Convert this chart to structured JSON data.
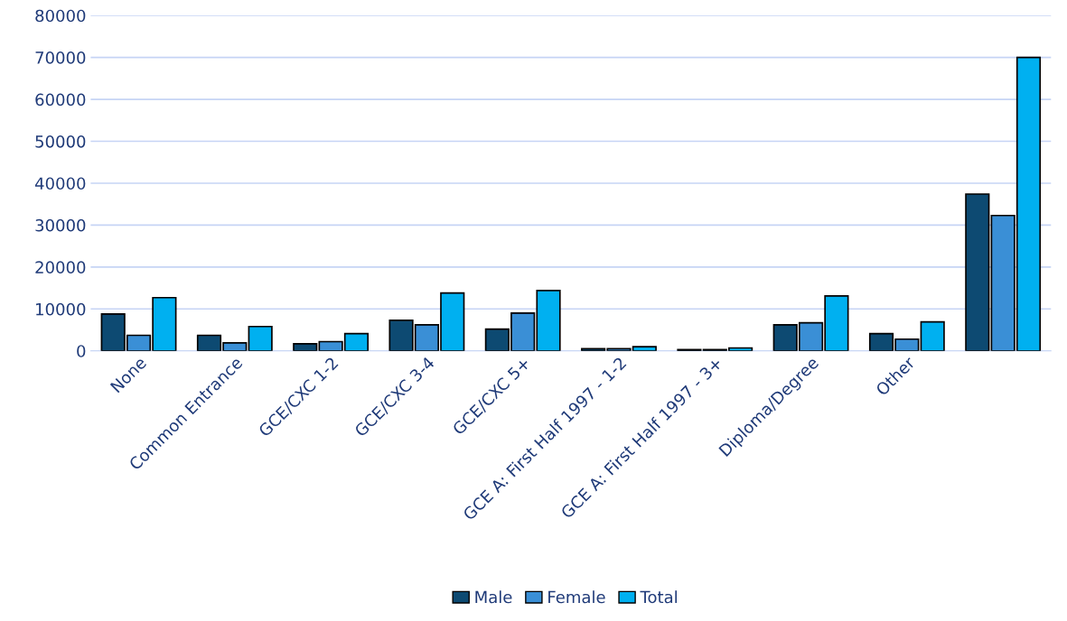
{
  "chart_data": {
    "type": "bar",
    "categories": [
      "None",
      "Common Entrance",
      "GCE/CXC 1-2",
      "GCE/CXC 3-4",
      "GCE/CXC 5+",
      "GCE A: First Half 1997 - 1-2",
      "GCE A: First Half 1997 - 3+",
      "Diploma/Degree",
      "Other",
      null
    ],
    "series": [
      {
        "name": "Male",
        "color": "#0d4a72",
        "values": [
          8800,
          3700,
          1700,
          7300,
          5200,
          500,
          300,
          6200,
          4100,
          37400
        ]
      },
      {
        "name": "Female",
        "color": "#3a8fd6",
        "values": [
          3700,
          1900,
          2200,
          6200,
          9000,
          500,
          300,
          6700,
          2800,
          32300
        ]
      },
      {
        "name": "Total",
        "color": "#00b0f0",
        "values": [
          12700,
          5800,
          4100,
          13800,
          14400,
          1000,
          700,
          13100,
          6900,
          70000
        ]
      }
    ],
    "ylim": [
      0,
      80000
    ],
    "yticks": [
      0,
      10000,
      20000,
      30000,
      40000,
      50000,
      60000,
      70000,
      80000
    ],
    "grid": "y",
    "legend": "bottom"
  }
}
